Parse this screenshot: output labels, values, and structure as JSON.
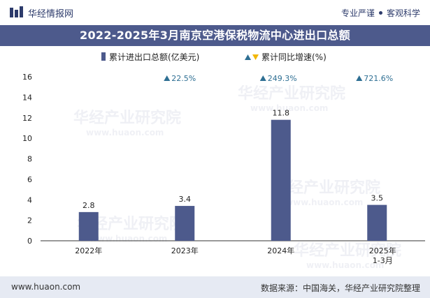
{
  "header": {
    "brand": "华经情报网",
    "slogan_left": "专业严谨",
    "slogan_right": "客观科学"
  },
  "title": "2022-2025年3月南京空港保税物流中心进出口总额",
  "footer": {
    "website": "www.huaon.com",
    "source": "数据来源：中国海关，华经产业研究院整理"
  },
  "colors": {
    "bar": "#4d5a8c",
    "growth_up": "#2e6f93",
    "growth_down": "#f2b705",
    "title_bg": "#4d5a8c",
    "footer_bg": "#e6eaf3"
  },
  "watermark": {
    "cn": "华经产业研究院",
    "en": "www.huaon.com"
  },
  "chart_data": {
    "type": "bar",
    "title": "2022-2025年3月南京空港保税物流中心进出口总额",
    "categories": [
      "2022年",
      "2023年",
      "2024年",
      "2025年\n1-3月"
    ],
    "series": [
      {
        "name": "累计进出口总额(亿美元)",
        "values": [
          2.8,
          3.4,
          11.8,
          3.5
        ]
      },
      {
        "name": "累计同比增速(%)",
        "values": [
          null,
          22.5,
          249.3,
          721.6
        ]
      }
    ],
    "value_labels": [
      "2.8",
      "3.4",
      "11.8",
      "3.5"
    ],
    "growth_labels": [
      "",
      "22.5%",
      "249.3%",
      "721.6%"
    ],
    "ylim": [
      0,
      16
    ],
    "yticks": [
      0,
      2,
      4,
      6,
      8,
      10,
      12,
      14,
      16
    ],
    "xlabel": "",
    "ylabel": "",
    "legend": [
      {
        "label": "累计进出口总额(亿美元)",
        "marker": "bar"
      },
      {
        "label": "累计同比增速(%)",
        "marker": "triangles"
      }
    ]
  }
}
